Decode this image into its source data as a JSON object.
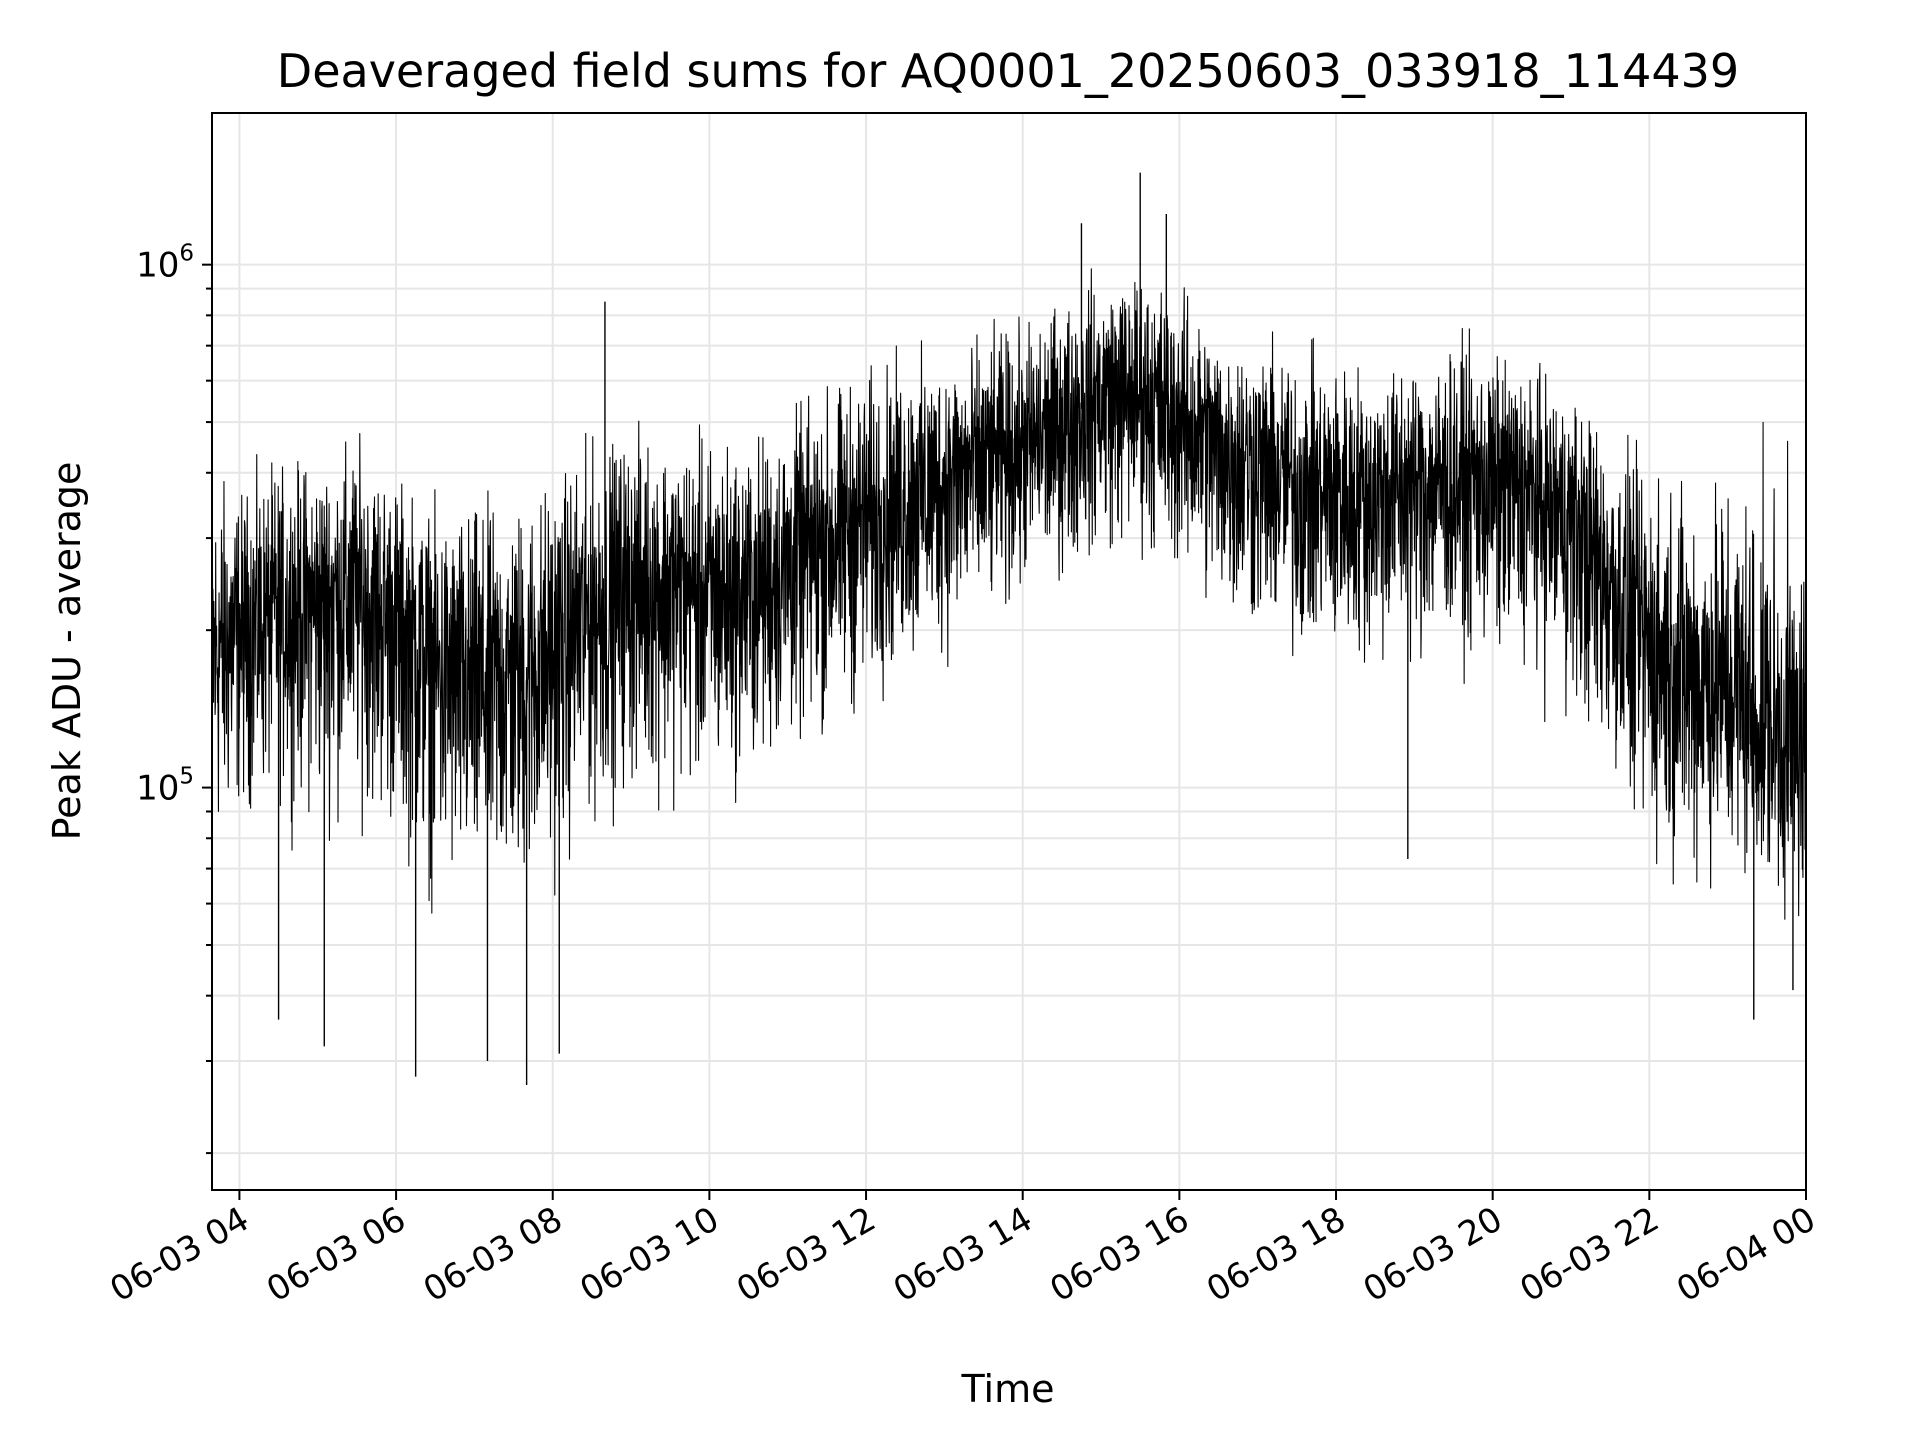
{
  "chart_data": {
    "type": "line",
    "title": "Deaveraged field sums for AQ0001_20250603_033918_114439",
    "xlabel": "Time",
    "ylabel": "Peak ADU - average",
    "y_scale": "log",
    "ylim": [
      17000,
      1950000
    ],
    "xlim": [
      "06-03 03:39",
      "06-04 00:00"
    ],
    "grid": true,
    "line_color": "#000000",
    "grid_color": "#e6e6e6",
    "x_ticks": [
      "06-03 04",
      "06-03 06",
      "06-03 08",
      "06-03 10",
      "06-03 12",
      "06-03 14",
      "06-03 16",
      "06-03 18",
      "06-03 20",
      "06-03 22",
      "06-04 00"
    ],
    "y_ticks": [
      {
        "base": "10",
        "exp": "5",
        "value": 100000
      },
      {
        "base": "10",
        "exp": "6",
        "value": 1000000
      }
    ],
    "x": [
      "06-03 03:40",
      "06-03 04:00",
      "06-03 04:30",
      "06-03 05:00",
      "06-03 05:30",
      "06-03 06:00",
      "06-03 06:30",
      "06-03 07:00",
      "06-03 07:30",
      "06-03 08:00",
      "06-03 08:30",
      "06-03 09:00",
      "06-03 09:30",
      "06-03 10:00",
      "06-03 10:30",
      "06-03 11:00",
      "06-03 11:30",
      "06-03 12:00",
      "06-03 12:30",
      "06-03 13:00",
      "06-03 13:30",
      "06-03 14:00",
      "06-03 14:30",
      "06-03 15:00",
      "06-03 15:30",
      "06-03 16:00",
      "06-03 16:30",
      "06-03 17:00",
      "06-03 17:30",
      "06-03 18:00",
      "06-03 18:30",
      "06-03 19:00",
      "06-03 19:30",
      "06-03 20:00",
      "06-03 20:30",
      "06-03 21:00",
      "06-03 21:30",
      "06-03 22:00",
      "06-03 22:30",
      "06-03 23:00",
      "06-03 23:30",
      "06-04 00:00"
    ],
    "series": [
      {
        "values": [
          180000,
          200000,
          220000,
          230000,
          240000,
          210000,
          170000,
          160000,
          165000,
          180000,
          220000,
          250000,
          250000,
          235000,
          240000,
          270000,
          300000,
          330000,
          360000,
          390000,
          420000,
          450000,
          500000,
          560000,
          580000,
          520000,
          450000,
          420000,
          380000,
          370000,
          370000,
          380000,
          400000,
          390000,
          370000,
          330000,
          250000,
          190000,
          160000,
          150000,
          130000,
          110000
        ],
        "min": [
          55000,
          70000,
          75000,
          65000,
          70000,
          60000,
          45000,
          42000,
          45000,
          50000,
          65000,
          75000,
          75000,
          75000,
          80000,
          90000,
          100000,
          110000,
          130000,
          140000,
          160000,
          190000,
          210000,
          230000,
          230000,
          200000,
          170000,
          150000,
          140000,
          135000,
          135000,
          140000,
          140000,
          135000,
          130000,
          110000,
          75000,
          55000,
          55000,
          55000,
          50000,
          42000
        ],
        "max": [
          520000,
          450000,
          500000,
          520000,
          560000,
          480000,
          420000,
          430000,
          440000,
          500000,
          560000,
          580000,
          580000,
          570000,
          560000,
          620000,
          700000,
          760000,
          800000,
          820000,
          850000,
          900000,
          1000000,
          1150000,
          1150000,
          1050000,
          900000,
          850000,
          800000,
          780000,
          780000,
          800000,
          820000,
          800000,
          760000,
          700000,
          560000,
          500000,
          540000,
          560000,
          520000,
          450000
        ]
      }
    ],
    "spikes": [
      {
        "x": "06-03 15:30",
        "value": 1500000
      },
      {
        "x": "06-03 15:50",
        "value": 1250000
      },
      {
        "x": "06-03 14:45",
        "value": 1200000
      },
      {
        "x": "06-03 08:40",
        "value": 850000
      },
      {
        "x": "06-03 07:10",
        "value": 30000
      },
      {
        "x": "06-03 06:15",
        "value": 28000
      },
      {
        "x": "06-03 05:05",
        "value": 32000
      },
      {
        "x": "06-03 07:40",
        "value": 27000
      },
      {
        "x": "06-03 08:05",
        "value": 31000
      },
      {
        "x": "06-03 18:55",
        "value": 73000
      },
      {
        "x": "06-03 04:30",
        "value": 36000
      },
      {
        "x": "06-03 23:20",
        "value": 36000
      },
      {
        "x": "06-03 23:50",
        "value": 41000
      }
    ]
  }
}
